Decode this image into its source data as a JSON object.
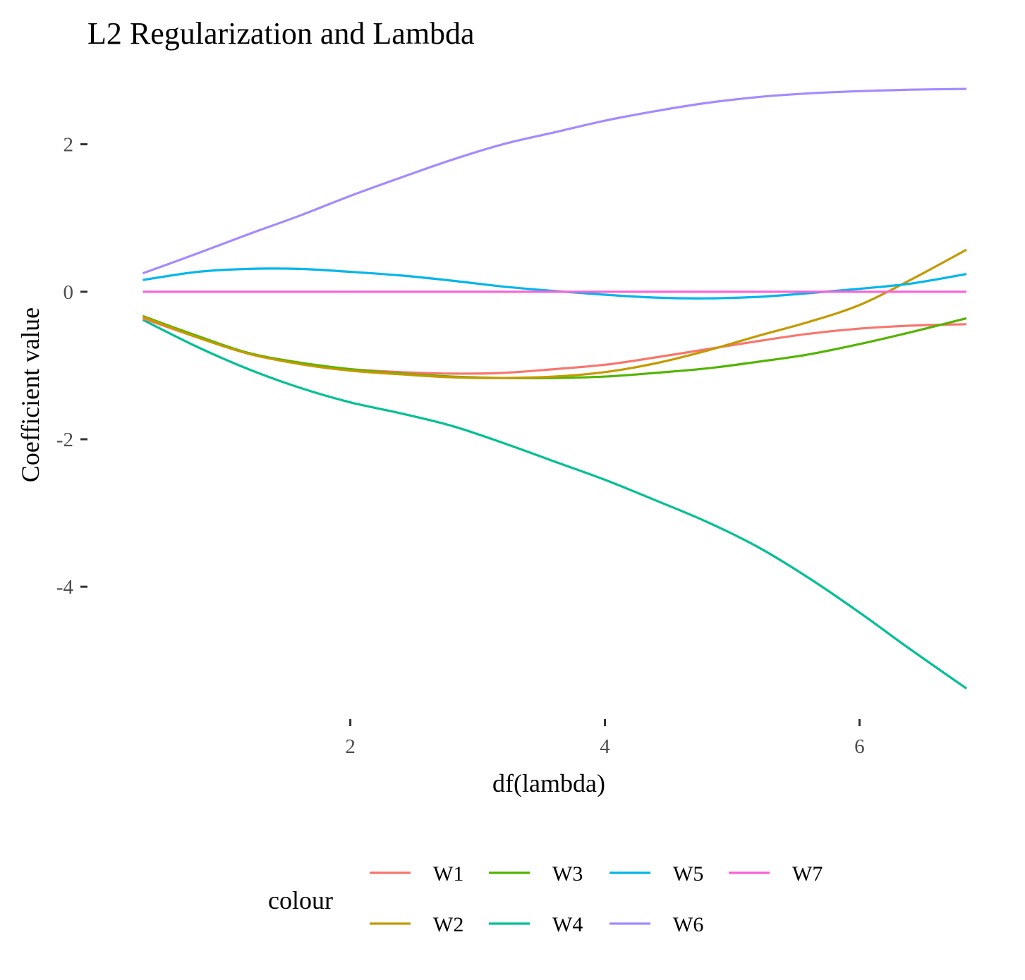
{
  "chart_data": {
    "type": "line",
    "title": "L2 Regularization and Lambda",
    "xlabel": "df(lambda)",
    "ylabel": "Coefficient value",
    "xlim": [
      0.29,
      6.84
    ],
    "ylim": [
      -5.7,
      3.0
    ],
    "xticks": [
      2,
      4,
      6
    ],
    "xtick_labels": [
      "2",
      "4",
      "6"
    ],
    "yticks": [
      2,
      0,
      -2,
      -4
    ],
    "ytick_labels": [
      "2",
      "0",
      "-2",
      "-4"
    ],
    "grid": false,
    "legend": {
      "title": "colour",
      "position": "bottom"
    },
    "x": [
      0.37,
      0.8,
      1.2,
      1.6,
      2.0,
      2.4,
      2.8,
      3.2,
      3.6,
      4.0,
      4.4,
      4.8,
      5.2,
      5.6,
      6.0,
      6.4,
      6.84
    ],
    "series": [
      {
        "name": "W1",
        "color": "#F8766D",
        "values": [
          -0.36,
          -0.62,
          -0.84,
          -0.97,
          -1.05,
          -1.09,
          -1.11,
          -1.1,
          -1.05,
          -0.99,
          -0.89,
          -0.78,
          -0.67,
          -0.57,
          -0.5,
          -0.46,
          -0.44
        ]
      },
      {
        "name": "W2",
        "color": "#C49A00",
        "values": [
          -0.34,
          -0.62,
          -0.84,
          -0.98,
          -1.07,
          -1.12,
          -1.16,
          -1.17,
          -1.15,
          -1.09,
          -0.97,
          -0.8,
          -0.6,
          -0.41,
          -0.18,
          0.16,
          0.57
        ]
      },
      {
        "name": "W3",
        "color": "#53B400",
        "values": [
          -0.33,
          -0.6,
          -0.83,
          -0.96,
          -1.05,
          -1.11,
          -1.15,
          -1.17,
          -1.17,
          -1.15,
          -1.1,
          -1.04,
          -0.95,
          -0.85,
          -0.71,
          -0.55,
          -0.36
        ]
      },
      {
        "name": "W4",
        "color": "#00C094",
        "values": [
          -0.38,
          -0.75,
          -1.05,
          -1.3,
          -1.5,
          -1.65,
          -1.82,
          -2.05,
          -2.3,
          -2.55,
          -2.83,
          -3.12,
          -3.46,
          -3.88,
          -4.35,
          -4.85,
          -5.38
        ]
      },
      {
        "name": "W5",
        "color": "#00B6EB",
        "values": [
          0.16,
          0.27,
          0.31,
          0.31,
          0.27,
          0.22,
          0.15,
          0.07,
          0.01,
          -0.04,
          -0.08,
          -0.09,
          -0.07,
          -0.02,
          0.04,
          0.11,
          0.24
        ]
      },
      {
        "name": "W6",
        "color": "#A58AFF",
        "values": [
          0.25,
          0.52,
          0.78,
          1.03,
          1.3,
          1.55,
          1.79,
          2.0,
          2.16,
          2.32,
          2.45,
          2.56,
          2.64,
          2.69,
          2.72,
          2.74,
          2.75
        ]
      },
      {
        "name": "W7",
        "color": "#FB61D7",
        "values": [
          0.0,
          0.0,
          0.0,
          0.0,
          0.0,
          0.0,
          0.0,
          0.0,
          0.0,
          0.0,
          0.0,
          0.0,
          0.0,
          0.0,
          0.0,
          0.0,
          0.0
        ]
      }
    ]
  }
}
